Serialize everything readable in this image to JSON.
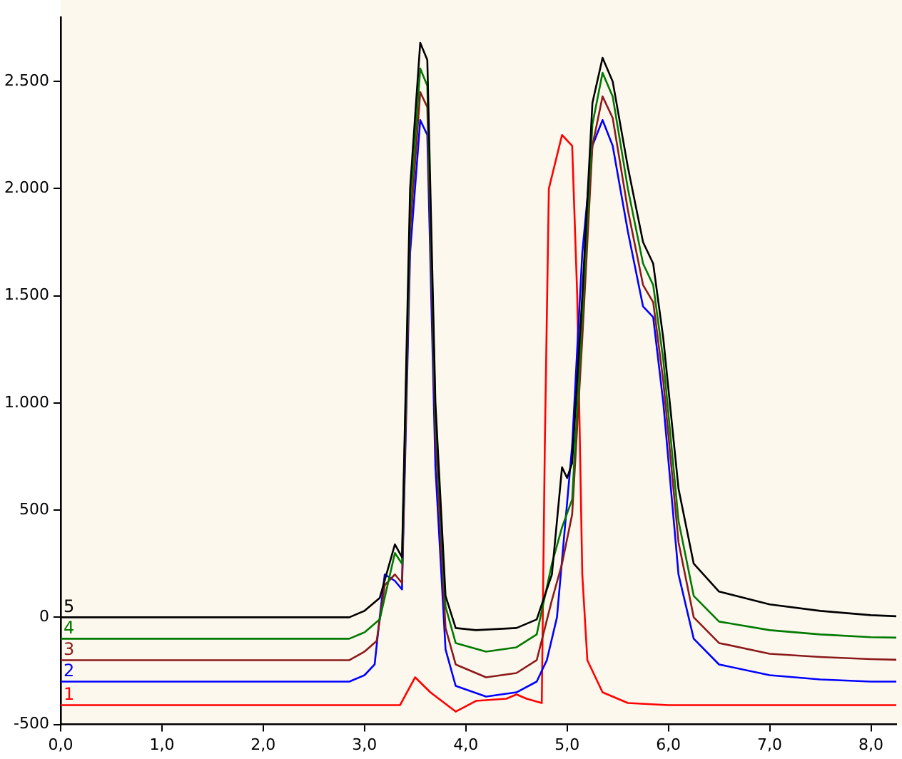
{
  "chart_data": {
    "type": "line",
    "xlim": [
      0,
      8.25
    ],
    "ylim": [
      -500,
      2800
    ],
    "xticks": [
      {
        "value": 0,
        "label": "0,0"
      },
      {
        "value": 1,
        "label": "1,0"
      },
      {
        "value": 2,
        "label": "2,0"
      },
      {
        "value": 3,
        "label": "3,0"
      },
      {
        "value": 4,
        "label": "4,0"
      },
      {
        "value": 5,
        "label": "5,0"
      },
      {
        "value": 6,
        "label": "6,0"
      },
      {
        "value": 7,
        "label": "7,0"
      },
      {
        "value": 8,
        "label": "8,0"
      }
    ],
    "yticks": [
      {
        "value": -500,
        "label": "-500"
      },
      0,
      500,
      {
        "value": 1000,
        "label": "1.000"
      },
      {
        "value": 1500,
        "label": "1.500"
      },
      {
        "value": 2000,
        "label": "2.000"
      },
      {
        "value": 2500,
        "label": "2.500"
      }
    ],
    "grid": false,
    "legend": false,
    "marker": "none",
    "line_style": "solid",
    "series": [
      {
        "name": "5",
        "color": "#000000",
        "x": [
          0,
          2.85,
          3.0,
          3.15,
          3.3,
          3.37,
          3.45,
          3.55,
          3.62,
          3.7,
          3.8,
          3.9,
          4.1,
          4.5,
          4.7,
          4.85,
          4.95,
          5.0,
          5.05,
          5.15,
          5.25,
          5.35,
          5.45,
          5.6,
          5.75,
          5.85,
          5.95,
          6.1,
          6.25,
          6.5,
          7.0,
          7.5,
          8.0,
          8.25
        ],
        "values": [
          0,
          0,
          30,
          90,
          340,
          280,
          2000,
          2680,
          2600,
          1000,
          100,
          -50,
          -60,
          -50,
          -10,
          200,
          700,
          650,
          720,
          1500,
          2400,
          2610,
          2500,
          2100,
          1750,
          1650,
          1300,
          600,
          250,
          120,
          60,
          30,
          10,
          5
        ]
      },
      {
        "name": "4",
        "color": "#007a00",
        "x": [
          0,
          2.85,
          3.0,
          3.15,
          3.3,
          3.37,
          3.45,
          3.55,
          3.62,
          3.7,
          3.8,
          3.9,
          4.2,
          4.5,
          4.7,
          4.85,
          4.95,
          5.05,
          5.15,
          5.25,
          5.35,
          5.45,
          5.6,
          5.75,
          5.85,
          5.95,
          6.1,
          6.25,
          6.5,
          7.0,
          7.5,
          8.0,
          8.25
        ],
        "values": [
          -100,
          -100,
          -70,
          -10,
          300,
          250,
          1900,
          2560,
          2480,
          950,
          50,
          -120,
          -160,
          -140,
          -80,
          250,
          420,
          550,
          1400,
          2300,
          2540,
          2430,
          2000,
          1650,
          1550,
          1200,
          450,
          100,
          -20,
          -60,
          -80,
          -93,
          -95
        ]
      },
      {
        "name": "3",
        "color": "#8b1a1a",
        "x": [
          0,
          2.85,
          3.0,
          3.12,
          3.2,
          3.3,
          3.37,
          3.45,
          3.55,
          3.62,
          3.7,
          3.8,
          3.9,
          4.2,
          4.5,
          4.7,
          4.85,
          4.95,
          5.05,
          5.15,
          5.25,
          5.35,
          5.45,
          5.6,
          5.75,
          5.85,
          5.95,
          6.1,
          6.25,
          6.5,
          7.0,
          7.5,
          8.0,
          8.25
        ],
        "values": [
          -200,
          -200,
          -160,
          -110,
          150,
          200,
          160,
          1800,
          2450,
          2380,
          850,
          -50,
          -220,
          -280,
          -260,
          -200,
          80,
          250,
          480,
          1300,
          2200,
          2430,
          2330,
          1900,
          1550,
          1470,
          1100,
          350,
          0,
          -120,
          -170,
          -185,
          -195,
          -198
        ]
      },
      {
        "name": "2",
        "color": "#0000ff",
        "x": [
          0,
          2.85,
          3.0,
          3.1,
          3.15,
          3.2,
          3.3,
          3.37,
          3.45,
          3.55,
          3.62,
          3.7,
          3.8,
          3.9,
          4.2,
          4.5,
          4.7,
          4.8,
          4.9,
          5.05,
          5.15,
          5.25,
          5.35,
          5.45,
          5.6,
          5.75,
          5.85,
          5.95,
          6.1,
          6.25,
          6.5,
          7.0,
          7.5,
          8.0,
          8.25
        ],
        "values": [
          -300,
          -300,
          -270,
          -220,
          0,
          200,
          170,
          130,
          1700,
          2320,
          2250,
          700,
          -150,
          -320,
          -370,
          -350,
          -300,
          -200,
          0,
          800,
          1700,
          2200,
          2320,
          2200,
          1800,
          1450,
          1400,
          1000,
          200,
          -100,
          -220,
          -270,
          -290,
          -300,
          -300
        ]
      },
      {
        "name": "1",
        "color": "#ff0000",
        "x": [
          0,
          3.35,
          3.5,
          3.65,
          3.9,
          4.1,
          4.4,
          4.5,
          4.6,
          4.75,
          4.78,
          4.82,
          4.95,
          5.05,
          5.1,
          5.15,
          5.2,
          5.35,
          5.6,
          6.0,
          8.25
        ],
        "values": [
          -410,
          -410,
          -280,
          -350,
          -440,
          -390,
          -380,
          -360,
          -380,
          -400,
          800,
          2000,
          2250,
          2200,
          1500,
          200,
          -200,
          -350,
          -400,
          -410,
          -410
        ]
      }
    ]
  }
}
